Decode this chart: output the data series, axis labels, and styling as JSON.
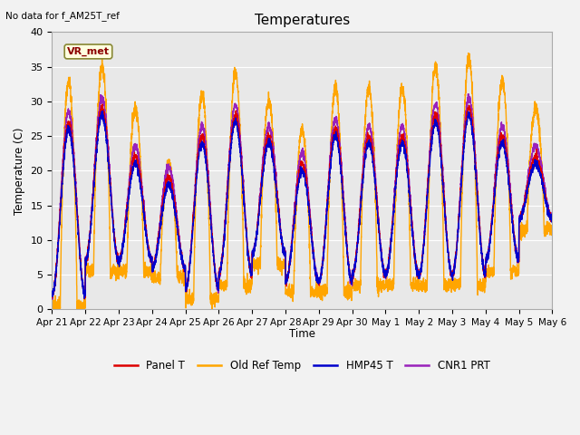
{
  "title": "Temperatures",
  "ylabel": "Temperature (C)",
  "xlabel": "Time",
  "note": "No data for f_AM25T_ref",
  "annotation": "VR_met",
  "ylim": [
    0,
    40
  ],
  "bg_color": "#e8e8e8",
  "xtick_labels": [
    "Apr 21",
    "Apr 22",
    "Apr 23",
    "Apr 24",
    "Apr 25",
    "Apr 26",
    "Apr 27",
    "Apr 28",
    "Apr 29",
    "Apr 30",
    "May 1",
    "May 2",
    "May 3",
    "May 4",
    "May 5",
    "May 6"
  ],
  "legend_entries": [
    "Panel T",
    "Old Ref Temp",
    "HMP45 T",
    "CNR1 PRT"
  ],
  "colors": {
    "panel_t": "#dd0000",
    "old_ref_temp": "#ffa500",
    "hmp45_t": "#0000cc",
    "cnr1_prt": "#9922bb"
  },
  "line_width": 1.0,
  "days": 15,
  "pts_per_day": 288,
  "day_mins": [
    2,
    7,
    7,
    6,
    3,
    5,
    8,
    4,
    4,
    5,
    5,
    5,
    5,
    7,
    13
  ],
  "day_maxs_ref": [
    33,
    35,
    29,
    21,
    31,
    34,
    30,
    26,
    32,
    32,
    32,
    35,
    36,
    33,
    29
  ],
  "day_maxs_clust": [
    27,
    29,
    22,
    19,
    25,
    28,
    25,
    21,
    26,
    25,
    25,
    28,
    29,
    25,
    22
  ]
}
